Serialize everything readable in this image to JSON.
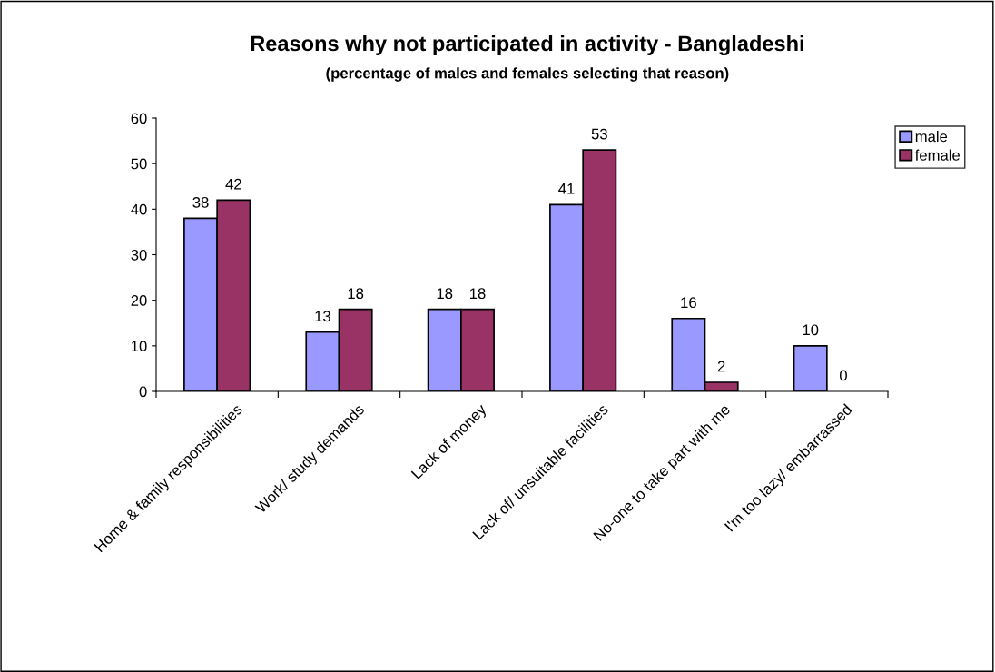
{
  "chart_data": {
    "type": "bar",
    "title": "Reasons why not participated in activity - Bangladeshi",
    "subtitle": "(percentage of males and females selecting that reason)",
    "categories": [
      "Home & family responsibilities",
      "Work/ study demands",
      "Lack of money",
      "Lack of/ unsuitable facilities",
      "No-one to take part with me",
      "I'm too lazy/ embarrassed"
    ],
    "series": [
      {
        "name": "male",
        "color": "#9999ff",
        "values": [
          38,
          13,
          18,
          41,
          16,
          10
        ]
      },
      {
        "name": "female",
        "color": "#993366",
        "values": [
          42,
          18,
          18,
          53,
          2,
          0
        ]
      }
    ],
    "ylim": [
      0,
      60
    ],
    "yticks": [
      0,
      10,
      20,
      30,
      40,
      50,
      60
    ],
    "data_labels": true,
    "grid": false,
    "legend": "right"
  }
}
